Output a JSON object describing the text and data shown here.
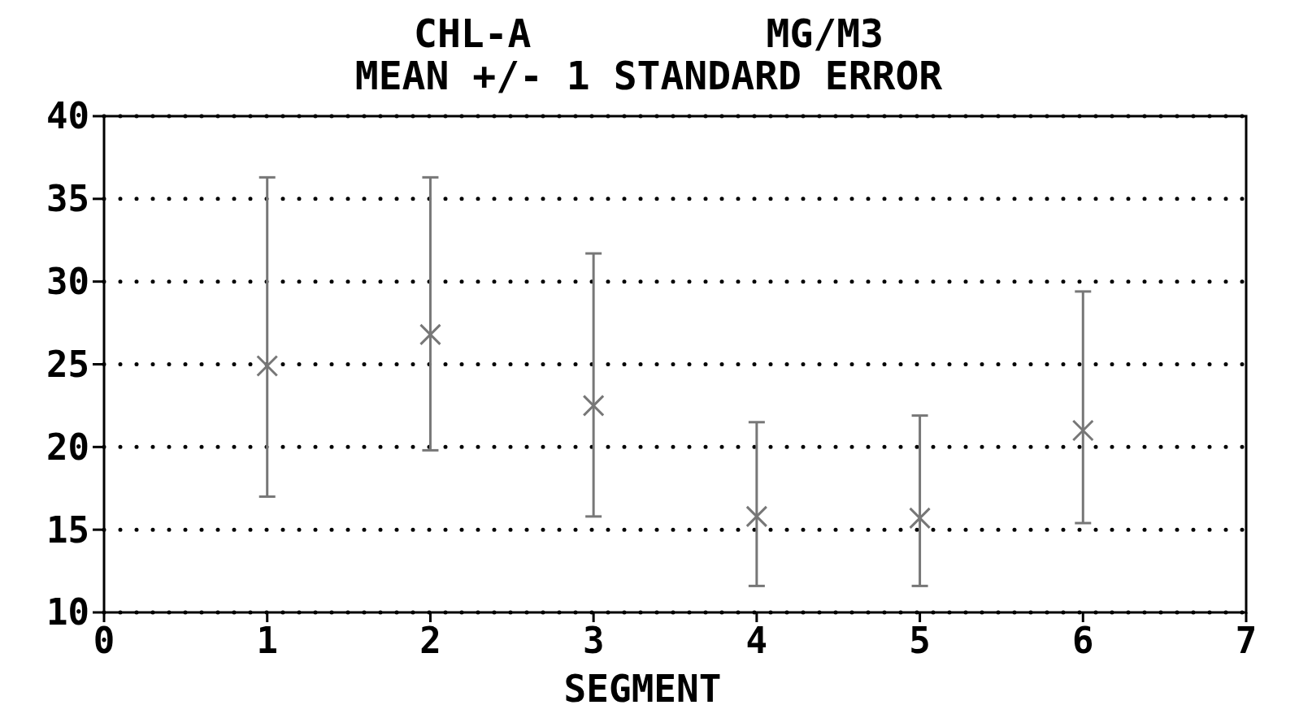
{
  "chart_data": {
    "type": "scatter",
    "title": "CHL-A          MG/M3",
    "subtitle": "MEAN +/- 1 STANDARD ERROR",
    "xlabel": "SEGMENT",
    "x": [
      1,
      2,
      3,
      4,
      5,
      6
    ],
    "series": [
      {
        "color": "#777777",
        "values": [
          24.9,
          26.8,
          22.5,
          15.8,
          15.7,
          21.0
        ],
        "errors": [
          [
            17.0,
            36.3
          ],
          [
            19.8,
            36.3
          ],
          [
            15.8,
            31.7
          ],
          [
            11.6,
            21.5
          ],
          [
            11.6,
            21.9
          ],
          [
            15.4,
            29.4
          ]
        ]
      }
    ],
    "xlim": [
      0,
      7
    ],
    "xticks": [
      0,
      1,
      2,
      3,
      4,
      5,
      6,
      7
    ],
    "ylim": [
      10,
      40
    ],
    "yticks": [
      10,
      15,
      20,
      25,
      30,
      35,
      40
    ],
    "grid": "y",
    "marker": "cross"
  }
}
